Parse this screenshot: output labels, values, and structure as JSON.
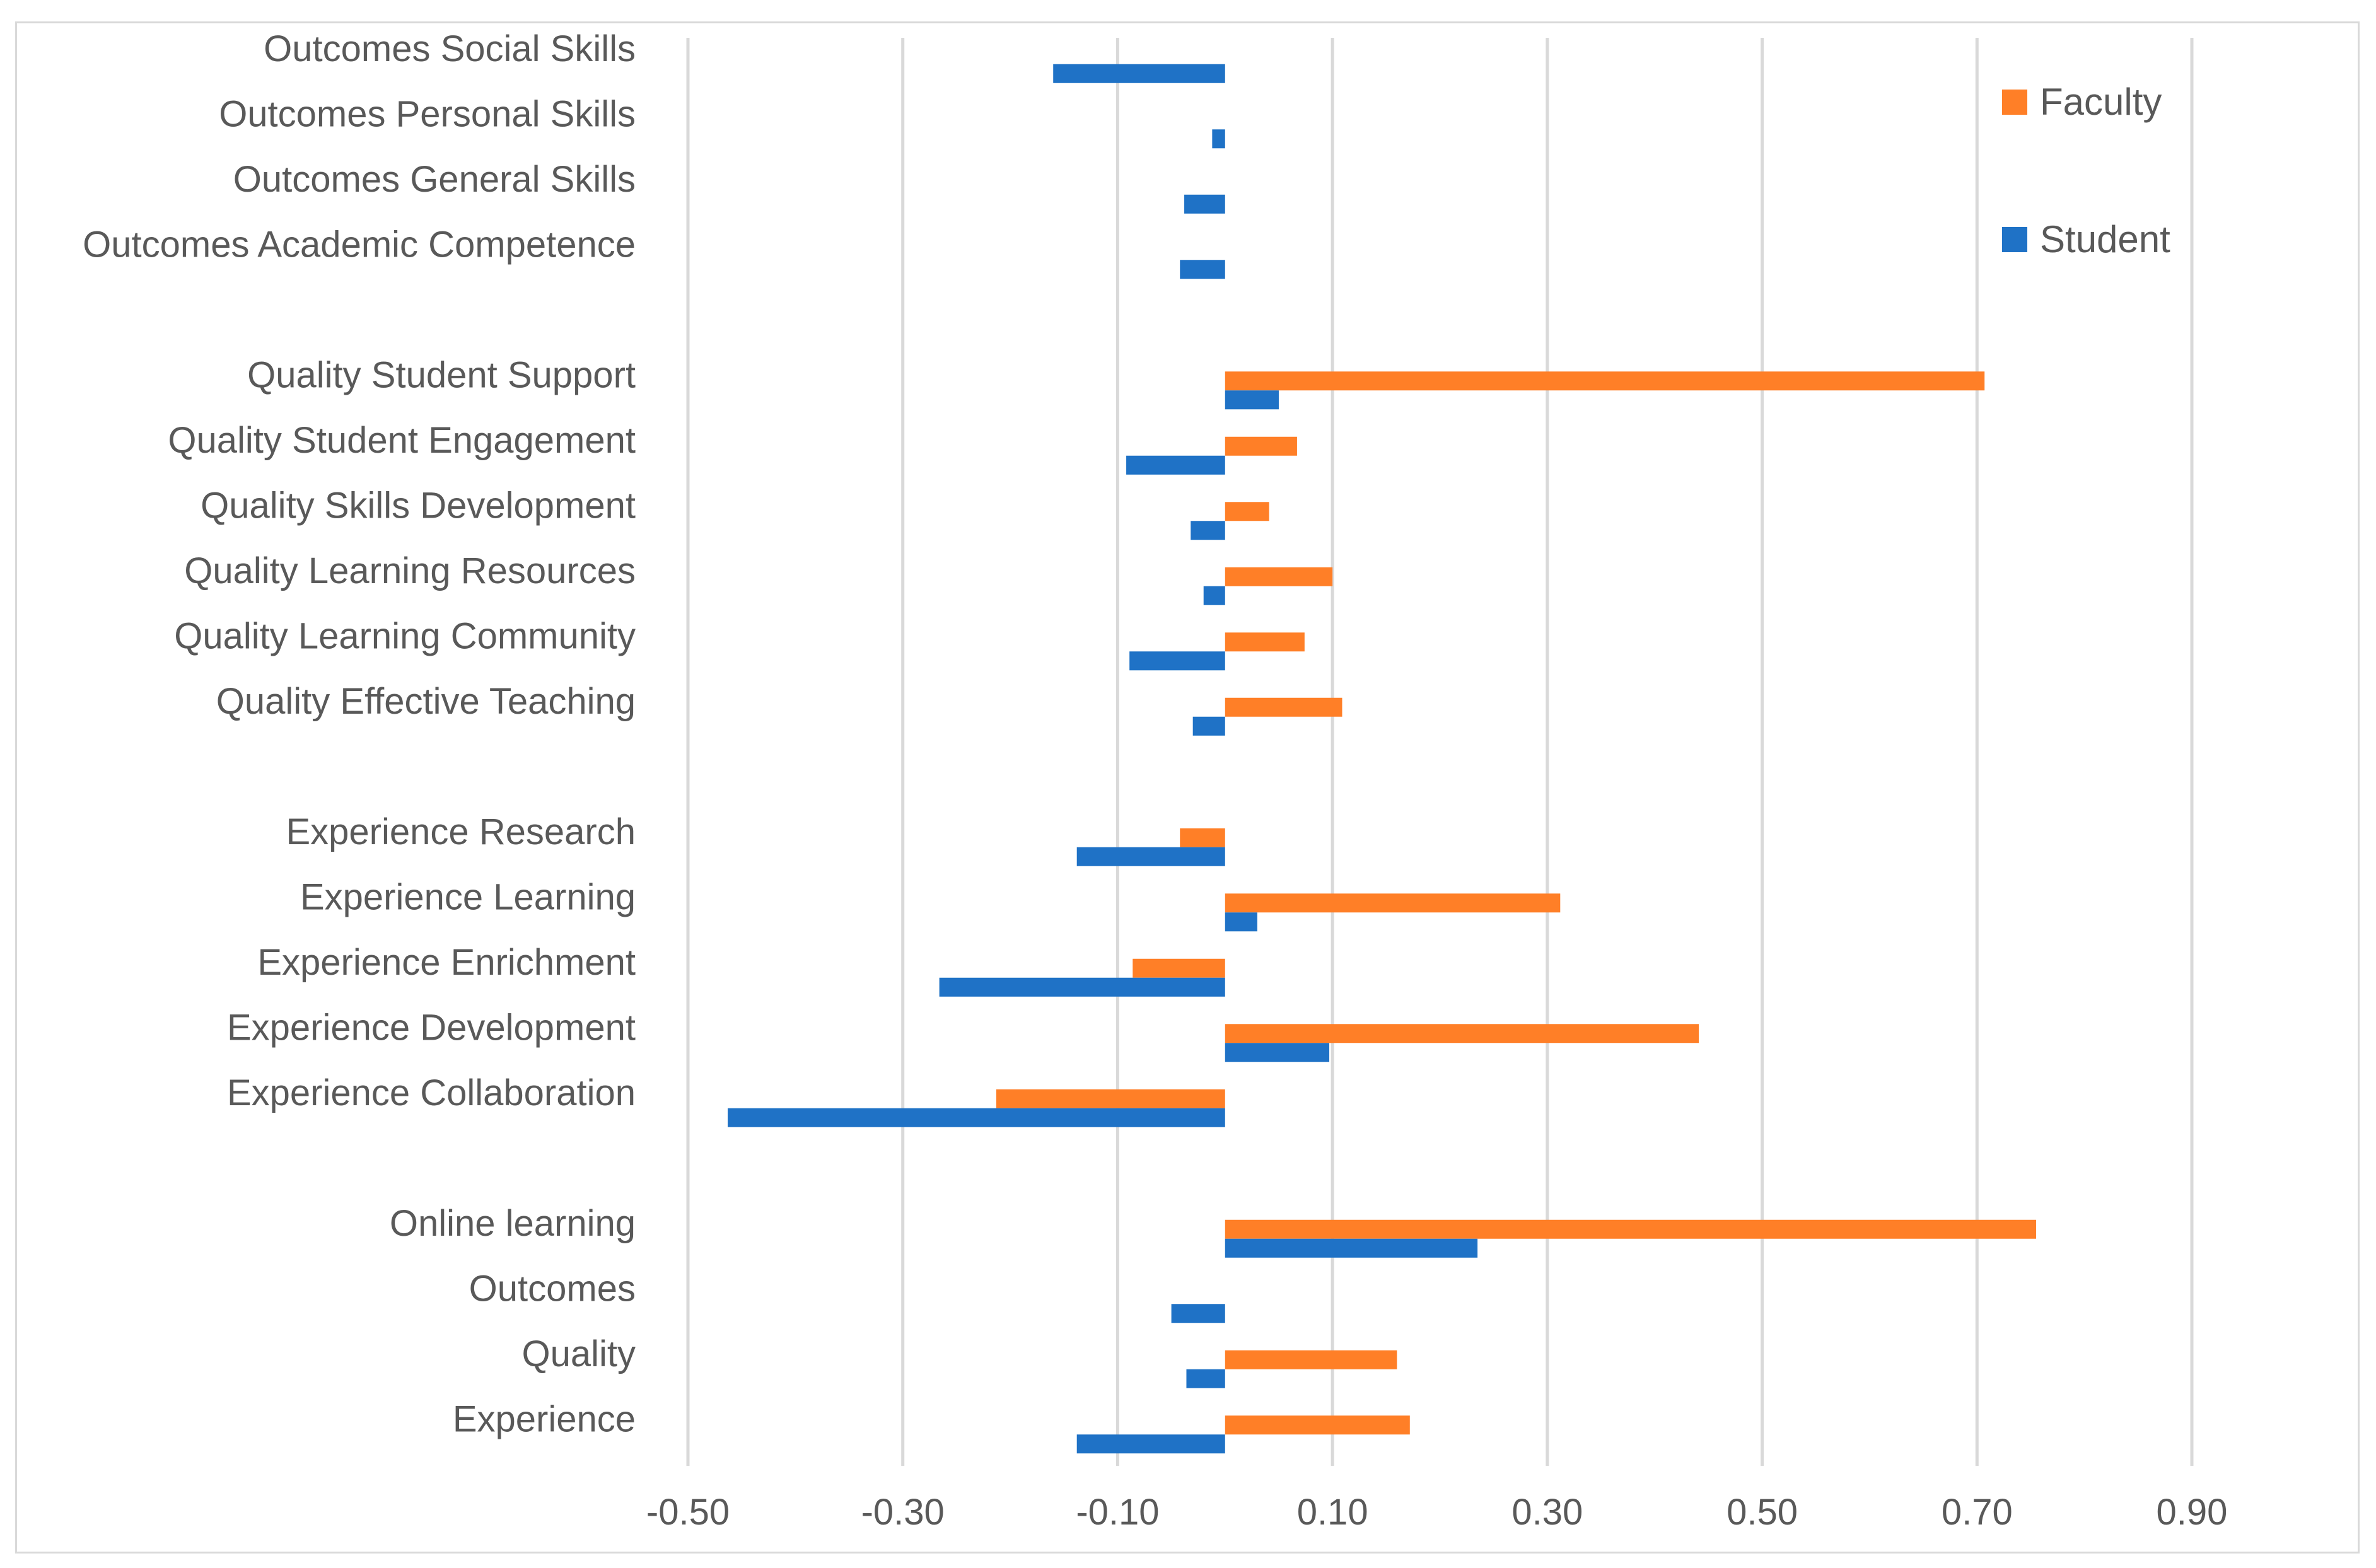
{
  "chart_data": {
    "type": "bar",
    "orientation": "horizontal",
    "title": "",
    "xlabel": "",
    "ylabel": "",
    "xlim": [
      -0.5,
      0.9
    ],
    "x_ticks": [
      "-0.50",
      "-0.30",
      "-0.10",
      "0.10",
      "0.30",
      "0.50",
      "0.70",
      "0.90"
    ],
    "x_tick_values": [
      -0.5,
      -0.3,
      -0.1,
      0.1,
      0.3,
      0.5,
      0.7,
      0.9
    ],
    "grid": true,
    "legend_position": "top-right",
    "categories": [
      "Outcomes Social Skills",
      "Outcomes Personal Skills",
      "Outcomes General Skills",
      "Outcomes Academic Competence",
      "",
      "Quality Student Support",
      "Quality Student Engagement",
      "Quality Skills Development",
      "Quality Learning Resources",
      "Quality Learning Community",
      "Quality Effective Teaching",
      "",
      "Experience Research",
      "Experience Learning",
      "Experience Enrichment",
      "Experience Development",
      "Experience Collaboration",
      "",
      "Online learning",
      "Outcomes",
      "Quality",
      "Experience"
    ],
    "series": [
      {
        "name": "Faculty",
        "color": "#ff7f27",
        "values": [
          null,
          null,
          null,
          null,
          null,
          0.707,
          0.067,
          0.041,
          0.1,
          0.074,
          0.109,
          null,
          -0.042,
          0.312,
          -0.086,
          0.441,
          -0.213,
          null,
          0.755,
          null,
          0.16,
          0.172
        ]
      },
      {
        "name": "Student",
        "color": "#1f72c6",
        "values": [
          -0.16,
          -0.012,
          -0.038,
          -0.042,
          null,
          0.05,
          -0.092,
          -0.032,
          -0.02,
          -0.089,
          -0.03,
          null,
          -0.138,
          0.03,
          -0.266,
          0.097,
          -0.463,
          null,
          0.235,
          -0.05,
          -0.036,
          -0.138
        ]
      }
    ]
  }
}
